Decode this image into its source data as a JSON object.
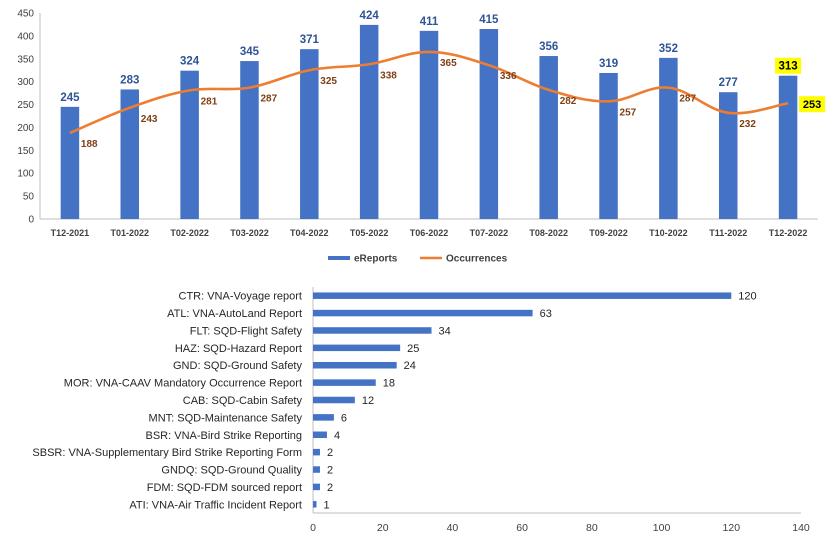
{
  "chart_data": [
    {
      "type": "bar+line",
      "categories": [
        "T12-2021",
        "T01-2022",
        "T02-2022",
        "T03-2022",
        "T04-2022",
        "T05-2022",
        "T06-2022",
        "T07-2022",
        "T08-2022",
        "T09-2022",
        "T10-2022",
        "T11-2022",
        "T12-2022"
      ],
      "series": [
        {
          "name": "eReports",
          "type": "bar",
          "color": "#4472c4",
          "values": [
            245,
            283,
            324,
            345,
            371,
            424,
            411,
            415,
            356,
            319,
            352,
            277,
            313
          ]
        },
        {
          "name": "Occurrences",
          "type": "line",
          "color": "#ed7d31",
          "values": [
            188,
            243,
            281,
            287,
            325,
            338,
            365,
            336,
            282,
            257,
            287,
            232,
            253
          ]
        }
      ],
      "yticks": [
        "0",
        "50",
        "100",
        "150",
        "200",
        "250",
        "300",
        "350",
        "400",
        "450"
      ],
      "ylim": [
        0,
        450
      ],
      "grid": false,
      "legend": "bottom",
      "highlight_color": "#ffff00",
      "highlighted_labels": [
        "eReports T12-2022",
        "Occurrences T12-2022"
      ]
    },
    {
      "type": "bar",
      "orientation": "horizontal",
      "categories": [
        "CTR: VNA-Voyage report",
        "ATL: VNA-AutoLand Report",
        "FLT: SQD-Flight Safety",
        "HAZ: SQD-Hazard Report",
        "GND: SQD-Ground Safety",
        "MOR: VNA-CAAV Mandatory Occurrence Report",
        "CAB: SQD-Cabin Safety",
        "MNT: SQD-Maintenance Safety",
        "BSR: VNA-Bird Strike Reporting",
        "SBSR: VNA-Supplementary Bird Strike Reporting Form",
        "GNDQ: SQD-Ground Quality",
        "FDM: SQD-FDM sourced report",
        "ATI: VNA-Air Traffic Incident Report"
      ],
      "values": [
        120,
        63,
        34,
        25,
        24,
        18,
        12,
        6,
        4,
        2,
        2,
        2,
        1
      ],
      "color": "#4472c4",
      "xticks": [
        "0",
        "20",
        "40",
        "60",
        "80",
        "100",
        "120",
        "140"
      ],
      "xlim": [
        0,
        140
      ],
      "grid": false
    }
  ]
}
